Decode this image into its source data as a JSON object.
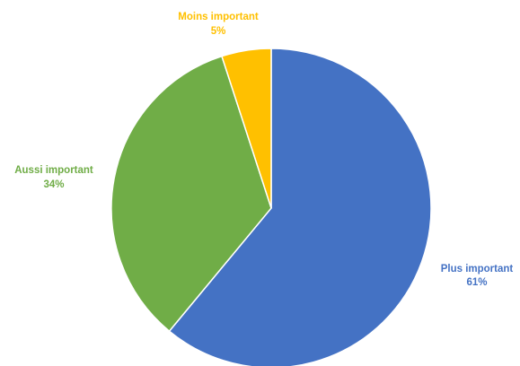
{
  "chart_data": {
    "type": "pie",
    "title": "",
    "start": "12 o'clock",
    "direction": "clockwise",
    "slices": [
      {
        "label": "Plus important",
        "value": 61,
        "value_label": "61%",
        "color": "#4472C4"
      },
      {
        "label": "Aussi important",
        "value": 34,
        "value_label": "34%",
        "color": "#70AD47"
      },
      {
        "label": "Moins important",
        "value": 5,
        "value_label": "5%",
        "color": "#FFC000"
      }
    ],
    "legend": "none",
    "data_labels": "outside, in slice color"
  }
}
